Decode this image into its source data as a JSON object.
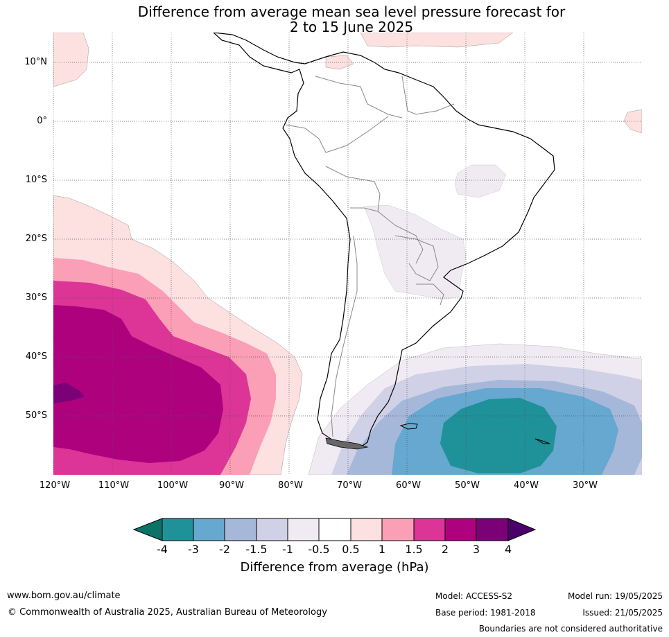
{
  "title_line1": "Difference from average mean sea level pressure forecast for",
  "title_line2": "2 to 15 June 2025",
  "lat_labels": [
    "10°N",
    "0°",
    "10°S",
    "20°S",
    "30°S",
    "40°S",
    "50°S"
  ],
  "lon_labels": [
    "120°W",
    "110°W",
    "100°W",
    "90°W",
    "80°W",
    "70°W",
    "60°W",
    "50°W",
    "40°W",
    "30°W"
  ],
  "colorbar": {
    "title": "Difference from average (hPa)",
    "ticks": [
      "-4",
      "-3",
      "-2",
      "-1.5",
      "-1",
      "-0.5",
      "0.5",
      "1",
      "1.5",
      "2",
      "3",
      "4"
    ],
    "colors": [
      "#0c7366",
      "#1f9199",
      "#66a8cf",
      "#a6b8d9",
      "#d0d1e6",
      "#f0eaf3",
      "#ffffff",
      "#fde0e0",
      "#fa9fb5",
      "#dd3497",
      "#ae017e",
      "#7a0177",
      "#49006a"
    ]
  },
  "footer": {
    "website": "www.bom.gov.au/climate",
    "copyright": "© Commonwealth of Australia 2025, Australian Bureau of Meteorology",
    "model": "Model: ACCESS-S2",
    "base_period": "Base period: 1981-2018",
    "model_run": "Model run: 19/05/2025",
    "issued": "Issued: 21/05/2025",
    "disclaimer": "Boundaries are not considered authoritative"
  }
}
